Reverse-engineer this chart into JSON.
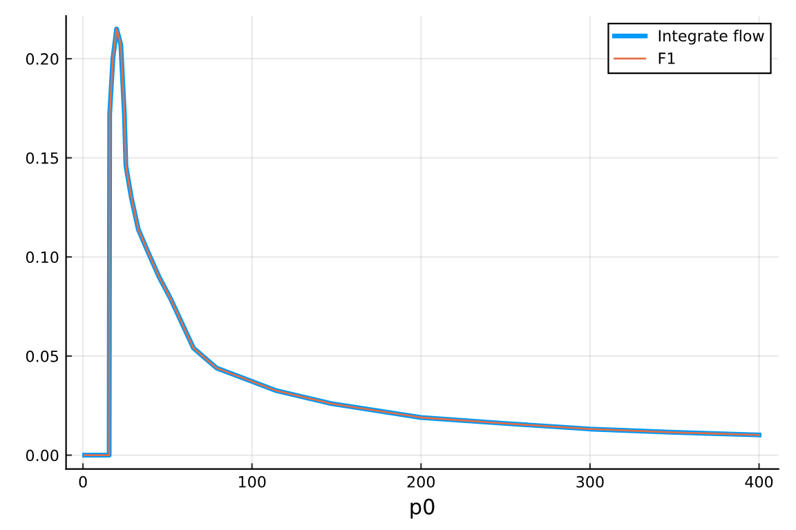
{
  "chart_data": {
    "type": "line",
    "xlabel": "p0",
    "x": [
      1,
      5,
      10,
      15,
      15.5,
      15.8,
      17.7,
      19.9,
      22.4,
      24.5,
      25.4,
      28.6,
      32.7,
      38.2,
      45,
      51.8,
      65.4,
      79,
      100.6,
      114.5,
      147,
      200,
      250,
      300,
      350,
      400
    ],
    "series": [
      {
        "name": "Integrate flow",
        "color": "#009af9",
        "values": [
          0,
          0,
          0,
          0,
          0,
          0.172,
          0.2,
          0.215,
          0.207,
          0.172,
          0.146,
          0.13,
          0.114,
          0.103,
          0.09,
          0.079,
          0.054,
          0.044,
          0.037,
          0.0325,
          0.026,
          0.019,
          0.016,
          0.0132,
          0.0115,
          0.0102
        ]
      },
      {
        "name": "F1",
        "color": "#e26f46",
        "values": [
          0,
          0,
          0,
          0,
          0,
          0.172,
          0.2,
          0.215,
          0.207,
          0.172,
          0.146,
          0.13,
          0.114,
          0.103,
          0.09,
          0.079,
          0.054,
          0.044,
          0.037,
          0.0325,
          0.026,
          0.019,
          0.016,
          0.0132,
          0.0115,
          0.0102
        ]
      }
    ],
    "xlim": [
      -10,
      411.5
    ],
    "ylim": [
      -0.007,
      0.2216
    ],
    "xticks": [
      0,
      100,
      200,
      300,
      400
    ],
    "yticks": [
      {
        "value": 0,
        "label": "0.00"
      },
      {
        "value": 0.05,
        "label": "0.05"
      },
      {
        "value": 0.1,
        "label": "0.10"
      },
      {
        "value": 0.15,
        "label": "0.15"
      },
      {
        "value": 0.2,
        "label": "0.20"
      }
    ],
    "grid": true,
    "legend": "top right"
  }
}
